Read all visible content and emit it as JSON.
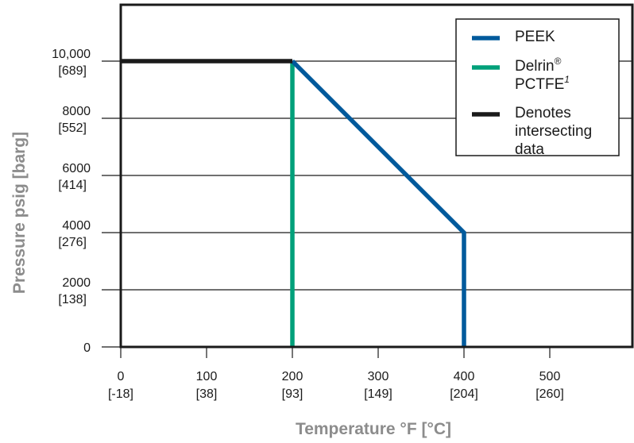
{
  "chart_data": {
    "type": "line",
    "xlabel": "Temperature °F [°C]",
    "ylabel": "Pressure psig [barg]",
    "xlim": [
      0,
      590
    ],
    "ylim": [
      0,
      12000
    ],
    "x_ticks": [
      {
        "value": 0,
        "label": "0",
        "sublabel": "[-18]"
      },
      {
        "value": 100,
        "label": "100",
        "sublabel": "[38]"
      },
      {
        "value": 200,
        "label": "200",
        "sublabel": "[93]"
      },
      {
        "value": 300,
        "label": "300",
        "sublabel": "[149]"
      },
      {
        "value": 400,
        "label": "400",
        "sublabel": "[204]"
      },
      {
        "value": 500,
        "label": "500",
        "sublabel": "[260]"
      }
    ],
    "y_ticks": [
      {
        "value": 0,
        "label": "0",
        "sublabel": ""
      },
      {
        "value": 2000,
        "label": "2000",
        "sublabel": "[138]"
      },
      {
        "value": 4000,
        "label": "4000",
        "sublabel": "[276]"
      },
      {
        "value": 6000,
        "label": "6000",
        "sublabel": "[414]"
      },
      {
        "value": 8000,
        "label": "8000",
        "sublabel": "[552]"
      },
      {
        "value": 10000,
        "label": "10,000",
        "sublabel": "[689]"
      }
    ],
    "grid": "horizontal",
    "legend_position": "top-right",
    "series": [
      {
        "name": "PEEK",
        "color": "#005a9c",
        "points": [
          [
            200,
            10000
          ],
          [
            400,
            4000
          ],
          [
            400,
            0
          ]
        ]
      },
      {
        "name": "Delrin",
        "name_sup": "®",
        "name_line2": "PCTFE",
        "name_line2_sup": "1",
        "color": "#00a07a",
        "points": [
          [
            200,
            10000
          ],
          [
            200,
            0
          ]
        ]
      },
      {
        "name": "Denotes",
        "name_line2": "intersecting",
        "name_line3": "data",
        "color": "#1a1a1a",
        "points": [
          [
            0,
            10000
          ],
          [
            200,
            10000
          ]
        ]
      }
    ]
  }
}
